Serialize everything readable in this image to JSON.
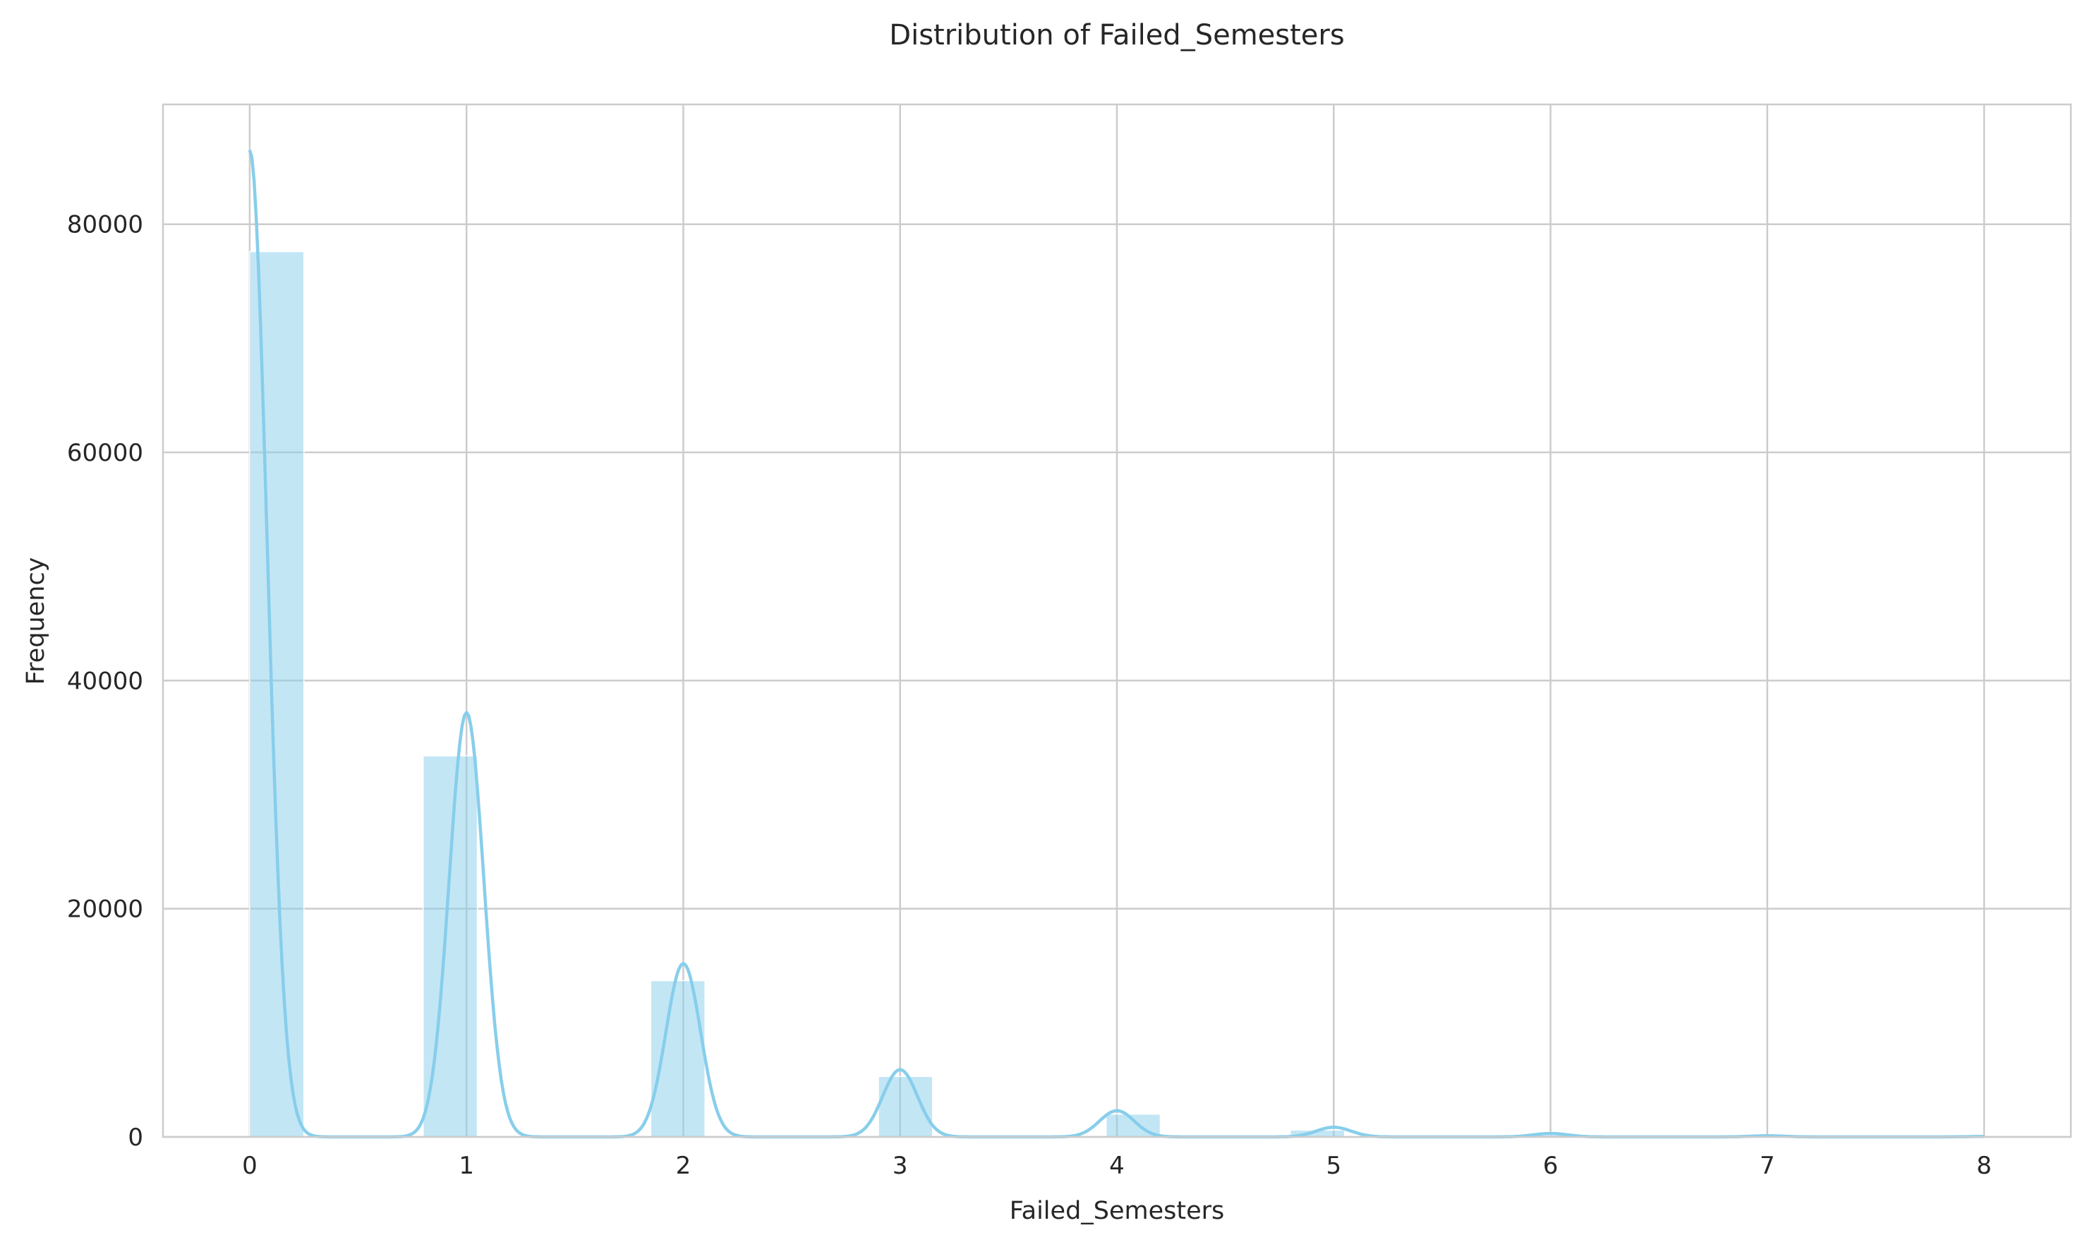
{
  "chart_data": {
    "type": "bar",
    "title": "Distribution of Failed_Semesters",
    "xlabel": "Failed_Semesters",
    "ylabel": "Frequency",
    "xlim": [
      -0.4,
      8.4
    ],
    "ylim": [
      0,
      90500
    ],
    "xticks": [
      0,
      1,
      2,
      3,
      4,
      5,
      6,
      7,
      8
    ],
    "yticks": [
      0,
      20000,
      40000,
      60000,
      80000
    ],
    "grid": true,
    "colors": {
      "bar": "#87ceeb",
      "kde": "#87ceeb",
      "grid": "#cccccc",
      "text": "#262626"
    },
    "bins": [
      {
        "start": 0.0,
        "end": 0.25,
        "count": 77600
      },
      {
        "start": 0.8,
        "end": 1.05,
        "count": 33400
      },
      {
        "start": 1.85,
        "end": 2.1,
        "count": 13700
      },
      {
        "start": 2.9,
        "end": 3.15,
        "count": 5300
      },
      {
        "start": 3.95,
        "end": 4.2,
        "count": 2000
      },
      {
        "start": 4.8,
        "end": 5.05,
        "count": 600
      },
      {
        "start": 5.85,
        "end": 6.1,
        "count": 180
      },
      {
        "start": 6.9,
        "end": 7.15,
        "count": 60
      },
      {
        "start": 7.75,
        "end": 8.0,
        "count": 20
      }
    ],
    "kde": {
      "peaks": [
        {
          "x": 0,
          "y": 86500
        },
        {
          "x": 1,
          "y": 37200
        },
        {
          "x": 2,
          "y": 15200
        },
        {
          "x": 3,
          "y": 5900
        },
        {
          "x": 4,
          "y": 2300
        },
        {
          "x": 5,
          "y": 850
        },
        {
          "x": 6,
          "y": 300
        },
        {
          "x": 7,
          "y": 100
        },
        {
          "x": 8,
          "y": 40
        }
      ],
      "bandwidth": 0.08
    }
  }
}
